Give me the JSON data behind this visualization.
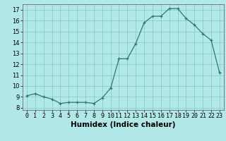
{
  "x": [
    0,
    1,
    2,
    3,
    4,
    5,
    6,
    7,
    8,
    9,
    10,
    11,
    12,
    13,
    14,
    15,
    16,
    17,
    18,
    19,
    20,
    21,
    22,
    23
  ],
  "y": [
    9.1,
    9.3,
    9.0,
    8.8,
    8.4,
    8.5,
    8.5,
    8.5,
    8.4,
    8.9,
    9.8,
    12.5,
    12.5,
    13.9,
    15.8,
    16.4,
    16.4,
    17.1,
    17.1,
    16.2,
    15.6,
    14.8,
    14.2,
    11.2
  ],
  "xlabel": "Humidex (Indice chaleur)",
  "line_color": "#2d7a6a",
  "bg_color": "#b3e8e8",
  "grid_color": "#80c8c0",
  "xlim": [
    -0.5,
    23.5
  ],
  "ylim": [
    7.8,
    17.5
  ],
  "yticks": [
    8,
    9,
    10,
    11,
    12,
    13,
    14,
    15,
    16,
    17
  ],
  "xticks": [
    0,
    1,
    2,
    3,
    4,
    5,
    6,
    7,
    8,
    9,
    10,
    11,
    12,
    13,
    14,
    15,
    16,
    17,
    18,
    19,
    20,
    21,
    22,
    23
  ],
  "tick_fontsize": 6.0,
  "xlabel_fontsize": 7.5
}
